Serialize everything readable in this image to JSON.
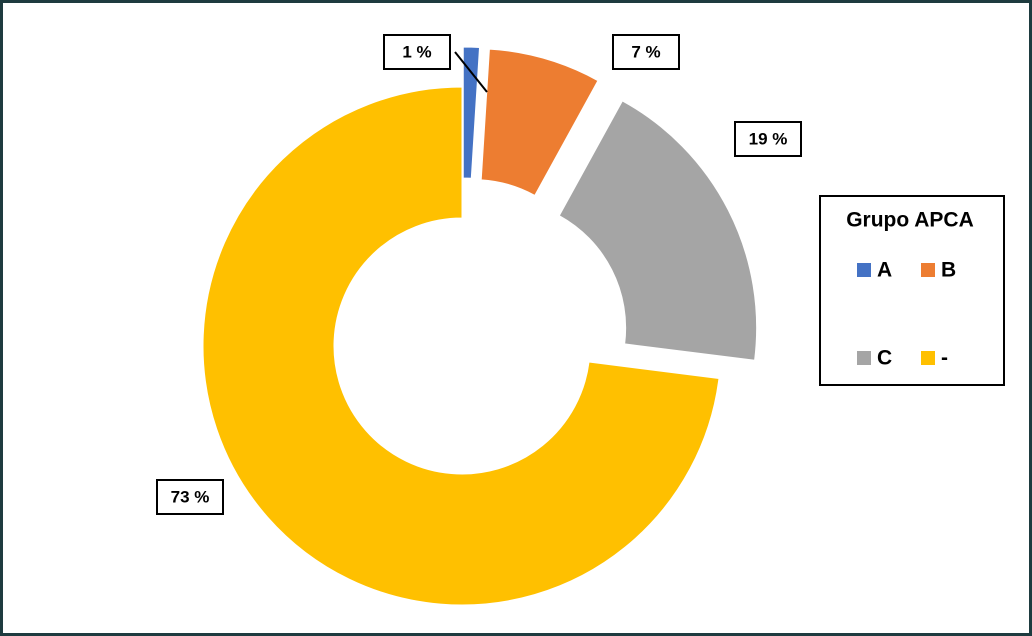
{
  "chart_data": {
    "type": "donut",
    "legend_title": "Grupo APCA",
    "categories": [
      "A",
      "B",
      "C",
      "-"
    ],
    "values": [
      1,
      7,
      19,
      73
    ],
    "value_labels": [
      "1 %",
      "7 %",
      "19 %",
      "73 %"
    ],
    "colors": [
      "#4472c4",
      "#ed7d31",
      "#a5a5a5",
      "#ffc000"
    ]
  }
}
